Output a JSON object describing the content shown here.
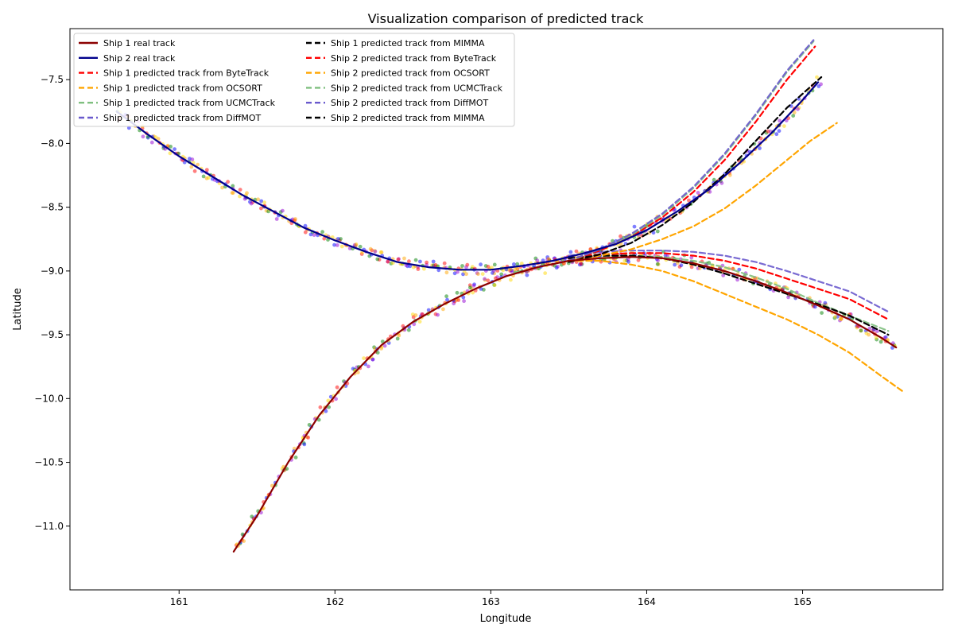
{
  "chart_data": {
    "type": "line",
    "title": "Visualization comparison of predicted track",
    "xlabel": "Longitude",
    "ylabel": "Latitude",
    "xlim": [
      160.3,
      165.9
    ],
    "ylim": [
      -11.5,
      -7.1
    ],
    "xticks": [
      161,
      162,
      163,
      164,
      165
    ],
    "yticks": [
      -11.0,
      -10.5,
      -10.0,
      -9.5,
      -9.0,
      -8.5,
      -8.0,
      -7.5
    ],
    "xtick_labels": [
      "161",
      "162",
      "163",
      "164",
      "165"
    ],
    "ytick_labels": [
      "−11.0",
      "−10.5",
      "−10.0",
      "−9.5",
      "−9.0",
      "−8.5",
      "−8.0",
      "−7.5"
    ],
    "grid": false,
    "legend_position": "upper-left",
    "scatter_colors": [
      "#ff0000",
      "#ffa500",
      "#008000",
      "#0000ff",
      "#ffd700",
      "#9400d3"
    ],
    "series": [
      {
        "name": "Ship 1 real track",
        "color": "#8b0000",
        "style": "solid",
        "x": [
          161.35,
          161.5,
          161.7,
          161.9,
          162.1,
          162.3,
          162.5,
          162.7,
          162.9,
          163.1,
          163.3,
          163.5,
          163.7,
          163.9,
          164.1,
          164.3,
          164.5,
          164.7,
          164.9,
          165.1,
          165.3,
          165.5,
          165.6
        ],
        "y": [
          -11.2,
          -10.92,
          -10.5,
          -10.13,
          -9.83,
          -9.58,
          -9.4,
          -9.26,
          -9.14,
          -9.04,
          -8.97,
          -8.92,
          -8.9,
          -8.89,
          -8.9,
          -8.94,
          -9.0,
          -9.08,
          -9.17,
          -9.27,
          -9.38,
          -9.52,
          -9.6
        ]
      },
      {
        "name": "Ship 2 real track",
        "color": "#00008b",
        "style": "solid",
        "x": [
          160.6,
          160.8,
          161.0,
          161.2,
          161.4,
          161.6,
          161.8,
          162.0,
          162.2,
          162.4,
          162.6,
          162.8,
          163.0,
          163.2,
          163.4,
          163.6,
          163.8,
          164.0,
          164.2,
          164.4,
          164.6,
          164.8,
          165.0,
          165.1
        ],
        "y": [
          -7.75,
          -7.93,
          -8.1,
          -8.25,
          -8.4,
          -8.53,
          -8.66,
          -8.76,
          -8.85,
          -8.93,
          -8.97,
          -8.99,
          -8.99,
          -8.96,
          -8.92,
          -8.86,
          -8.79,
          -8.68,
          -8.53,
          -8.36,
          -8.15,
          -7.92,
          -7.66,
          -7.52
        ]
      },
      {
        "name": "Ship 1 predicted track from ByteTrack",
        "color": "#ff0000",
        "style": "dashed",
        "x": [
          163.5,
          163.7,
          163.9,
          164.1,
          164.3,
          164.5,
          164.7,
          164.9,
          165.1,
          165.3,
          165.55
        ],
        "y": [
          -8.9,
          -8.87,
          -8.86,
          -8.86,
          -8.88,
          -8.92,
          -8.98,
          -9.06,
          -9.14,
          -9.22,
          -9.38
        ]
      },
      {
        "name": "Ship 1 predicted track from OCSORT",
        "color": "#ffa500",
        "style": "dashed",
        "x": [
          163.5,
          163.7,
          163.9,
          164.1,
          164.3,
          164.5,
          164.7,
          164.9,
          165.1,
          165.3,
          165.5,
          165.65
        ],
        "y": [
          -8.92,
          -8.92,
          -8.95,
          -9.0,
          -9.08,
          -9.18,
          -9.28,
          -9.38,
          -9.5,
          -9.64,
          -9.82,
          -9.95
        ]
      },
      {
        "name": "Ship 1 predicted track from UCMCTrack",
        "color": "#7fbf7f",
        "style": "dashed",
        "x": [
          163.5,
          163.7,
          163.9,
          164.1,
          164.3,
          164.5,
          164.7,
          164.9,
          165.1,
          165.3,
          165.55
        ],
        "y": [
          -8.9,
          -8.88,
          -8.88,
          -8.89,
          -8.92,
          -8.97,
          -9.05,
          -9.14,
          -9.25,
          -9.35,
          -9.47
        ]
      },
      {
        "name": "Ship 1 predicted track from DiffMOT",
        "color": "#6a5acd",
        "style": "dashed",
        "x": [
          163.5,
          163.7,
          163.9,
          164.1,
          164.3,
          164.5,
          164.7,
          164.9,
          165.1,
          165.3,
          165.55
        ],
        "y": [
          -8.88,
          -8.85,
          -8.84,
          -8.84,
          -8.85,
          -8.88,
          -8.93,
          -9.0,
          -9.08,
          -9.16,
          -9.32
        ]
      },
      {
        "name": "Ship 1 predicted track from MIMMA",
        "color": "#000000",
        "style": "dashed",
        "x": [
          163.5,
          163.7,
          163.9,
          164.1,
          164.3,
          164.5,
          164.7,
          164.9,
          165.1,
          165.3,
          165.55
        ],
        "y": [
          -8.9,
          -8.88,
          -8.88,
          -8.9,
          -8.95,
          -9.02,
          -9.1,
          -9.18,
          -9.26,
          -9.35,
          -9.5
        ]
      },
      {
        "name": "Ship 2 predicted track from ByteTrack",
        "color": "#ff0000",
        "style": "dashed",
        "x": [
          163.5,
          163.7,
          163.9,
          164.1,
          164.3,
          164.5,
          164.7,
          164.9,
          165.08
        ],
        "y": [
          -8.92,
          -8.84,
          -8.73,
          -8.58,
          -8.38,
          -8.13,
          -7.83,
          -7.5,
          -7.24
        ]
      },
      {
        "name": "Ship 2 predicted track from OCSORT",
        "color": "#ffa500",
        "style": "dashed",
        "x": [
          163.5,
          163.7,
          163.9,
          164.1,
          164.3,
          164.5,
          164.7,
          164.9,
          165.05,
          165.22
        ],
        "y": [
          -8.92,
          -8.88,
          -8.83,
          -8.75,
          -8.65,
          -8.51,
          -8.33,
          -8.13,
          -7.98,
          -7.84
        ]
      },
      {
        "name": "Ship 2 predicted track from UCMCTrack",
        "color": "#7fbf7f",
        "style": "dashed",
        "x": [
          163.5,
          163.7,
          163.9,
          164.1,
          164.3,
          164.5,
          164.7,
          164.9,
          165.07
        ],
        "y": [
          -8.92,
          -8.83,
          -8.72,
          -8.56,
          -8.35,
          -8.09,
          -7.78,
          -7.44,
          -7.2
        ]
      },
      {
        "name": "Ship 2 predicted track from DiffMOT",
        "color": "#6a5acd",
        "style": "dashed",
        "x": [
          163.5,
          163.7,
          163.9,
          164.1,
          164.3,
          164.5,
          164.7,
          164.9,
          165.07
        ],
        "y": [
          -8.92,
          -8.83,
          -8.71,
          -8.55,
          -8.34,
          -8.08,
          -7.77,
          -7.43,
          -7.19
        ]
      },
      {
        "name": "Ship 2 predicted track from MIMMA",
        "color": "#000000",
        "style": "dashed",
        "x": [
          163.5,
          163.7,
          163.9,
          164.1,
          164.3,
          164.5,
          164.7,
          164.9,
          165.12
        ],
        "y": [
          -8.93,
          -8.87,
          -8.78,
          -8.64,
          -8.46,
          -8.24,
          -7.98,
          -7.72,
          -7.48
        ]
      }
    ]
  }
}
